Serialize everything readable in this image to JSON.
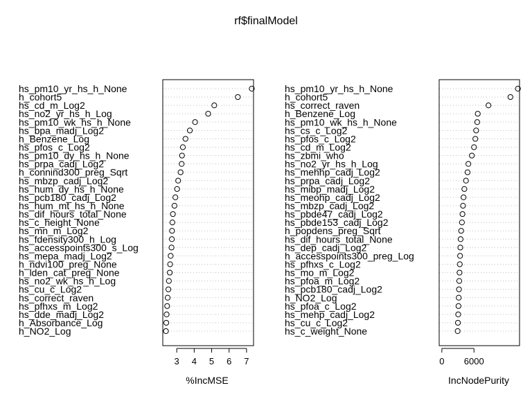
{
  "title": "rf$finalModel",
  "chart_data": [
    {
      "type": "scatter",
      "subtype": "dotchart",
      "xlabel": "%IncMSE",
      "xticks": [
        3,
        4,
        5,
        6,
        7
      ],
      "xlim": [
        2.2,
        7.4
      ],
      "grid": "dotted horizontal",
      "labels": [
        "hs_pm10_yr_hs_h_None",
        "h_cohort5",
        "hs_cd_m_Log2",
        "hs_no2_yr_hs_h_Log",
        "hs_pm10_wk_hs_h_None",
        "hs_bpa_madj_Log2",
        "h_Benzene_Log",
        "hs_pfos_c_Log2",
        "hs_pm10_dy_hs_h_None",
        "hs_prpa_cadj_Log2",
        "h_connind300_preg_Sqrt",
        "hs_mbzp_cadj_Log2",
        "hs_hum_dy_hs_h_None",
        "hs_pcb180_cadj_Log2",
        "hs_hum_mt_hs_h_None",
        "hs_dif_hours_total_None",
        "hs_c_height_None",
        "hs_mn_m_Log2",
        "hs_fdensity300_h_Log",
        "hs_accesspoints300_s_Log",
        "hs_mepa_madj_Log2",
        "h_ndvi100_preg_None",
        "h_lden_cat_preg_None",
        "hs_no2_wk_hs_h_Log",
        "hs_cu_c_Log2",
        "hs_correct_raven",
        "hs_pfhxs_m_Log2",
        "hs_dde_madj_Log2",
        "h_Absorbance_Log",
        "h_NO2_Log"
      ],
      "values": [
        7.3,
        6.5,
        5.15,
        4.8,
        4.05,
        3.75,
        3.5,
        3.35,
        3.3,
        3.28,
        3.22,
        3.08,
        3.02,
        2.92,
        2.87,
        2.78,
        2.75,
        2.73,
        2.72,
        2.7,
        2.65,
        2.62,
        2.6,
        2.55,
        2.52,
        2.48,
        2.45,
        2.42,
        2.4,
        2.38
      ]
    },
    {
      "type": "scatter",
      "subtype": "dotchart",
      "xlabel": "IncNodePurity",
      "xticks": [
        0,
        6000
      ],
      "xlim": [
        -500,
        14500
      ],
      "grid": "dotted horizontal",
      "labels": [
        "hs_pm10_yr_hs_h_None",
        "h_cohort5",
        "hs_correct_raven",
        "h_Benzene_Log",
        "hs_pm10_wk_hs_h_None",
        "hs_cs_c_Log2",
        "hs_pfos_c_Log2",
        "hs_cd_m_Log2",
        "hs_zbmi_who",
        "hs_no2_yr_hs_h_Log",
        "hs_mehhp_cadj_Log2",
        "hs_prpa_cadj_Log2",
        "hs_mibp_madj_Log2",
        "hs_meohp_cadj_Log2",
        "hs_mbzp_cadj_Log2",
        "hs_pbde47_cadj_Log2",
        "hs_pbde153_cadj_Log2",
        "h_popdens_preg_Sqrt",
        "hs_dif_hours_total_None",
        "hs_dep_cadj_Log2",
        "h_accesspoints300_preg_Log",
        "hs_pfhxs_c_Log2",
        "hs_mo_m_Log2",
        "hs_pfoa_m_Log2",
        "hs_pcb180_cadj_Log2",
        "h_NO2_Log",
        "hs_pfoa_c_Log2",
        "hs_mehp_cadj_Log2",
        "hs_cu_c_Log2",
        "hs_c_weight_None"
      ],
      "values": [
        14200,
        12800,
        8700,
        6700,
        6600,
        6400,
        6250,
        6000,
        5600,
        4950,
        4800,
        4500,
        4200,
        4050,
        3950,
        3850,
        3750,
        3600,
        3500,
        3450,
        3400,
        3350,
        3300,
        3250,
        3200,
        3150,
        3100,
        3050,
        3000,
        2950
      ]
    }
  ]
}
